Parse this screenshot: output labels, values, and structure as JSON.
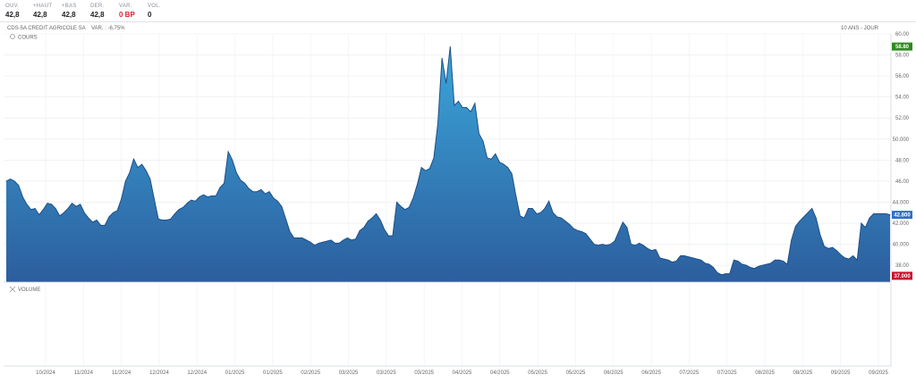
{
  "stats": [
    {
      "label": "OUV.",
      "value": "42,8"
    },
    {
      "label": "+HAUT",
      "value": "42,8"
    },
    {
      "label": "+BAS",
      "value": "42,8"
    },
    {
      "label": "DER.",
      "value": "42,8"
    },
    {
      "label": "VAR.",
      "value": "0 BP",
      "color": "#e0212b"
    },
    {
      "label": "VOL.",
      "value": "0"
    }
  ],
  "chart_header": {
    "instrument": "CDS-5A CREDIT AGRICOLE SA",
    "variation": "VAR. : -6,75%",
    "period": "10 ANS - JOUR"
  },
  "legend": {
    "price": "COURS",
    "volume": "VOLUME"
  },
  "colors": {
    "area_top": "#3ba6da",
    "area_bottom": "#2c5e9e",
    "line": "#1f4f86",
    "max_badge": "#2e8b1d",
    "last_badge": "#2f6fc7",
    "min_badge": "#c8102e"
  },
  "chart_data": {
    "type": "area",
    "title": "",
    "ylim": [
      36.4,
      60
    ],
    "y_ticks": [
      "60.00",
      "58.00",
      "56.00",
      "54.00",
      "52.00",
      "50.000",
      "48.00",
      "46.00",
      "44.000",
      "42.000",
      "40.000",
      "38.00",
      "37.000"
    ],
    "x_ticks": [
      "10/2024",
      "11/2024",
      "11/2024",
      "12/2024",
      "12/2024",
      "01/2025",
      "01/2025",
      "02/2025",
      "03/2025",
      "03/2025",
      "03/2025",
      "04/2025",
      "04/2025",
      "05/2025",
      "05/2025",
      "06/2025",
      "06/2025",
      "07/2025",
      "07/2025",
      "08/2025",
      "08/2025",
      "09/2025",
      "09/2025"
    ],
    "badges": {
      "max": "58.80",
      "last": "42.800",
      "min": "37.000"
    },
    "series": [
      {
        "values": [
          46.0,
          46.2,
          46.0,
          45.6,
          44.5,
          43.8,
          43.3,
          43.4,
          42.8,
          43.3,
          43.9,
          43.8,
          43.4,
          42.7,
          43.0,
          43.4,
          43.9,
          43.6,
          43.8,
          43.0,
          42.5,
          42.1,
          42.3,
          41.8,
          41.8,
          42.6,
          43.0,
          43.2,
          44.3,
          46.0,
          46.8,
          48.1,
          47.3,
          47.6,
          47.0,
          46.2,
          44.3,
          42.4,
          42.3,
          42.3,
          42.4,
          42.9,
          43.3,
          43.5,
          43.9,
          44.2,
          44.1,
          44.5,
          44.7,
          44.5,
          44.6,
          44.6,
          45.4,
          45.8,
          48.8,
          48.0,
          46.8,
          46.1,
          45.8,
          45.3,
          45.0,
          45.0,
          45.2,
          44.8,
          45.0,
          44.4,
          44.1,
          43.6,
          42.4,
          41.2,
          40.6,
          40.6,
          40.6,
          40.4,
          40.2,
          39.9,
          40.1,
          40.2,
          40.3,
          40.4,
          40.1,
          40.1,
          40.4,
          40.6,
          40.4,
          40.5,
          41.3,
          41.6,
          42.2,
          42.5,
          42.9,
          42.3,
          41.4,
          40.8,
          40.8,
          44.0,
          43.6,
          43.3,
          43.5,
          44.4,
          45.7,
          47.3,
          47.0,
          47.2,
          48.2,
          51.5,
          57.7,
          55.3,
          58.8,
          53.2,
          53.6,
          53.0,
          53.0,
          52.6,
          53.4,
          50.5,
          49.8,
          48.2,
          48.1,
          48.6,
          47.8,
          47.6,
          47.3,
          46.7,
          44.6,
          42.7,
          42.5,
          43.4,
          43.4,
          42.9,
          43.0,
          43.4,
          44.1,
          43.0,
          42.6,
          42.5,
          42.2,
          41.9,
          41.5,
          41.3,
          41.2,
          41.0,
          40.5,
          40.0,
          39.9,
          40.0,
          39.9,
          40.0,
          40.3,
          41.2,
          42.1,
          41.6,
          40.0,
          39.9,
          40.1,
          39.9,
          39.6,
          39.4,
          39.5,
          38.7,
          38.6,
          38.5,
          38.3,
          38.4,
          38.9,
          38.9,
          38.8,
          38.7,
          38.6,
          38.5,
          38.2,
          38.1,
          37.8,
          37.3,
          37.1,
          37.2,
          37.2,
          38.5,
          38.4,
          38.1,
          38.0,
          37.8,
          37.7,
          37.9,
          38.0,
          38.1,
          38.2,
          38.5,
          38.5,
          38.4,
          38.1,
          40.4,
          41.7,
          42.2,
          42.6,
          43.0,
          43.4,
          42.5,
          40.9,
          39.8,
          39.6,
          39.7,
          39.4,
          39.0,
          38.7,
          38.6,
          38.9,
          38.5,
          42.0,
          41.6,
          42.5,
          42.9,
          42.9,
          42.9,
          42.9,
          42.8
        ]
      }
    ]
  }
}
